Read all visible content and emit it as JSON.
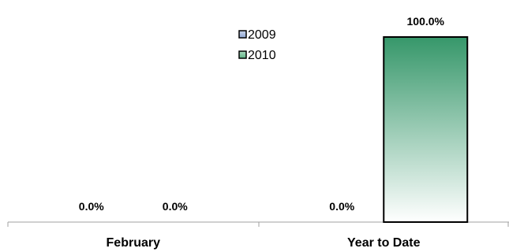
{
  "chart_data": {
    "type": "bar",
    "categories": [
      "February",
      "Year to Date"
    ],
    "series": [
      {
        "name": "2009",
        "values": [
          0.0,
          0.0
        ],
        "labels": [
          "0.0%",
          "0.0%"
        ],
        "color": "#4a6fb0"
      },
      {
        "name": "2010",
        "values": [
          0.0,
          100.0
        ],
        "labels": [
          "0.0%",
          "100.0%"
        ],
        "color": "#3a9a64"
      }
    ],
    "ylim": [
      0,
      100
    ],
    "grid": false,
    "legend_position": "top-center"
  }
}
